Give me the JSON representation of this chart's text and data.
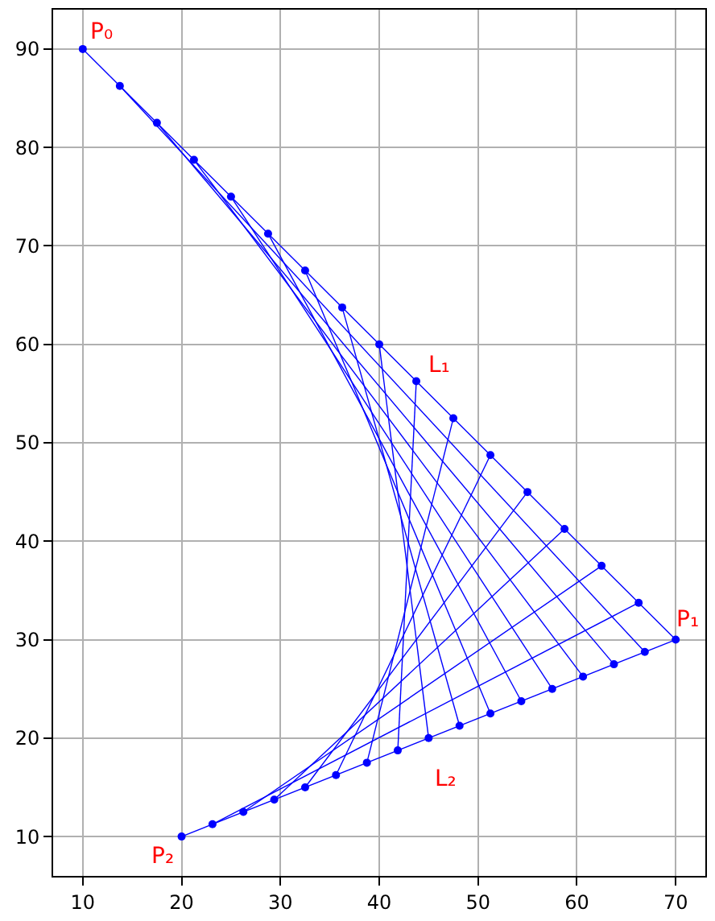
{
  "chart_data": {
    "type": "line",
    "xlim": [
      7,
      73
    ],
    "ylim": [
      6,
      94
    ],
    "xticks": [
      10,
      20,
      30,
      40,
      50,
      60,
      70
    ],
    "yticks": [
      10,
      20,
      30,
      40,
      50,
      60,
      70,
      80,
      90
    ],
    "grid": true,
    "marker": "none",
    "line_style": "solid",
    "series": [
      {
        "color": "#0000ff",
        "x": [
          10,
          70
        ],
        "values": [
          90,
          30
        ]
      },
      {
        "color": "#0000ff",
        "x": [
          13.75,
          66.875
        ],
        "values": [
          86.25,
          28.75
        ]
      },
      {
        "color": "#0000ff",
        "x": [
          17.5,
          63.75
        ],
        "values": [
          82.5,
          27.5
        ]
      },
      {
        "color": "#0000ff",
        "x": [
          21.25,
          60.625
        ],
        "values": [
          78.75,
          26.25
        ]
      },
      {
        "color": "#0000ff",
        "x": [
          25,
          57.5
        ],
        "values": [
          75,
          25
        ]
      },
      {
        "color": "#0000ff",
        "x": [
          28.75,
          54.375
        ],
        "values": [
          71.25,
          23.75
        ]
      },
      {
        "color": "#0000ff",
        "x": [
          32.5,
          51.25
        ],
        "values": [
          67.5,
          22.5
        ]
      },
      {
        "color": "#0000ff",
        "x": [
          36.25,
          48.125
        ],
        "values": [
          63.75,
          21.25
        ]
      },
      {
        "color": "#0000ff",
        "x": [
          40,
          45
        ],
        "values": [
          60,
          20
        ]
      },
      {
        "color": "#0000ff",
        "x": [
          43.75,
          41.875
        ],
        "values": [
          56.25,
          18.75
        ]
      },
      {
        "color": "#0000ff",
        "x": [
          47.5,
          38.75
        ],
        "values": [
          52.5,
          17.5
        ]
      },
      {
        "color": "#0000ff",
        "x": [
          51.25,
          35.625
        ],
        "values": [
          48.75,
          16.25
        ]
      },
      {
        "color": "#0000ff",
        "x": [
          55,
          32.5
        ],
        "values": [
          45,
          15
        ]
      },
      {
        "color": "#0000ff",
        "x": [
          58.75,
          29.375
        ],
        "values": [
          41.25,
          13.75
        ]
      },
      {
        "color": "#0000ff",
        "x": [
          62.5,
          26.25
        ],
        "values": [
          37.5,
          12.5
        ]
      },
      {
        "color": "#0000ff",
        "x": [
          66.25,
          23.125
        ],
        "values": [
          33.75,
          11.25
        ]
      },
      {
        "color": "#0000ff",
        "x": [
          70,
          20
        ],
        "values": [
          30,
          10
        ]
      },
      {
        "type": "scatter",
        "marker": "circle",
        "color": "#0000ff",
        "x": [
          10,
          13.75,
          17.5,
          21.25,
          25,
          28.75,
          32.5,
          36.25,
          40,
          43.75,
          47.5,
          51.25,
          55,
          58.75,
          62.5,
          66.25,
          70
        ],
        "values": [
          90,
          86.25,
          82.5,
          78.75,
          75,
          71.25,
          67.5,
          63.75,
          60,
          56.25,
          52.5,
          48.75,
          45,
          41.25,
          37.5,
          33.75,
          30
        ]
      },
      {
        "type": "scatter",
        "marker": "circle",
        "color": "#0000ff",
        "x": [
          66.875,
          63.75,
          60.625,
          57.5,
          54.375,
          51.25,
          48.125,
          45,
          41.875,
          38.75,
          35.625,
          32.5,
          29.375,
          26.25,
          23.125,
          20
        ],
        "values": [
          28.75,
          27.5,
          26.25,
          25,
          23.75,
          22.5,
          21.25,
          20,
          18.75,
          17.5,
          16.25,
          15,
          13.75,
          12.5,
          11.25,
          10
        ]
      }
    ],
    "annotations": [
      {
        "text": "P₀",
        "x": 10,
        "y": 90
      },
      {
        "text": "P₁",
        "x": 70,
        "y": 30
      },
      {
        "text": "P₂",
        "x": 20,
        "y": 10
      },
      {
        "text": "L₁",
        "x": 43.75,
        "y": 56.25
      },
      {
        "text": "L₂",
        "x": 45,
        "y": 20
      }
    ]
  }
}
